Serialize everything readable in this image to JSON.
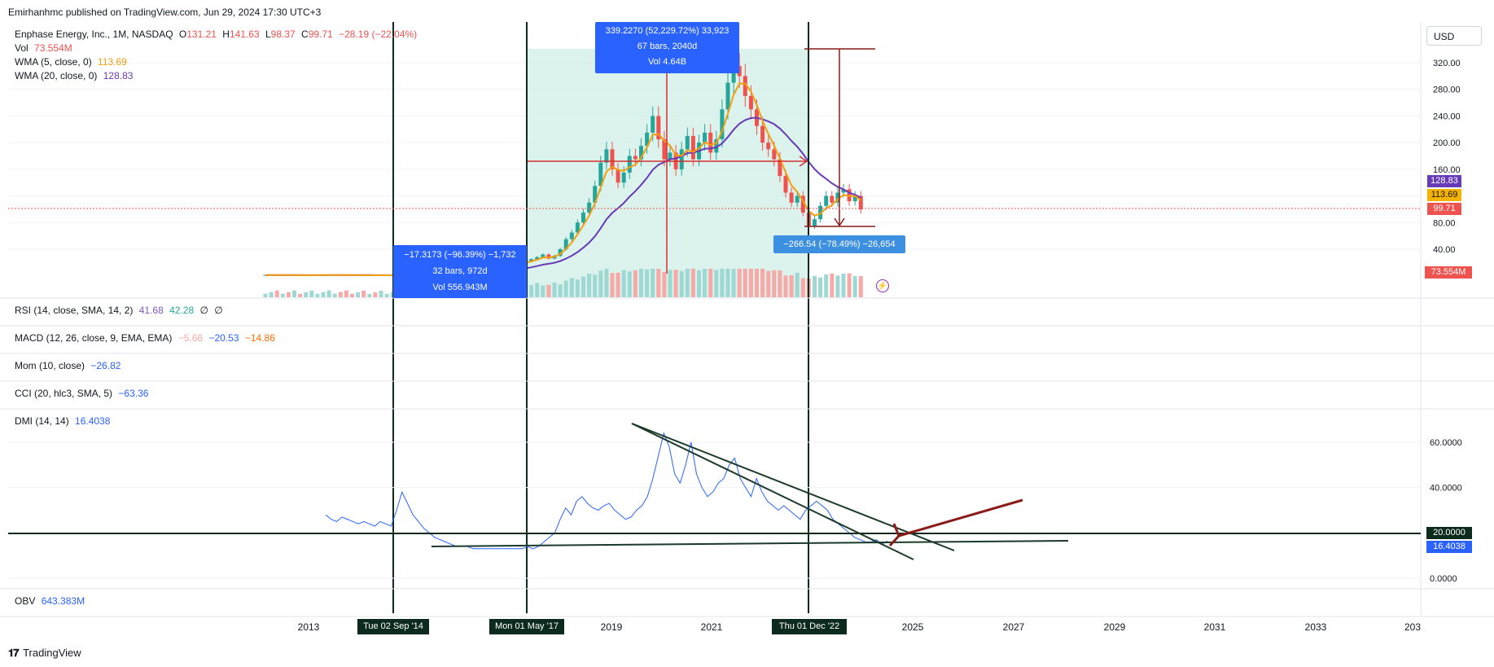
{
  "header": {
    "published": "Emirhanhmc published on TradingView.com, Jun 29, 2024 17:30 UTC+3"
  },
  "legend": {
    "symbol": "Enphase Energy, Inc., 1M, NASDAQ",
    "o_label": "O",
    "o": "131.21",
    "h_label": "H",
    "h": "141.63",
    "l_label": "L",
    "l": "98.37",
    "c_label": "C",
    "c": "99.71",
    "change": "−28.19 (−22.04%)",
    "vol_label": "Vol",
    "vol": "73.554M",
    "wma5_label": "WMA (5, close, 0)",
    "wma5": "113.69",
    "wma20_label": "WMA (20, close, 0)",
    "wma20": "128.83"
  },
  "currency": "USD",
  "price_badges": {
    "wma20": "128.83",
    "wma5": "113.69",
    "close": "99.71",
    "volume": "73.554M"
  },
  "measurements": {
    "top": {
      "line1": "339.2270 (52,229.72%) 33,923",
      "line2": "67 bars, 2040d",
      "line3": "Vol 4.64B"
    },
    "left": {
      "line1": "−17.3173 (−96.39%) −1,732",
      "line2": "32 bars, 972d",
      "line3": "Vol 556.943M"
    },
    "right": {
      "line1": "−266.54 (−78.49%) −26,654"
    }
  },
  "panes": {
    "rsi": {
      "label": "RSI (14, close, SMA, 14, 2)",
      "v1": "41.68",
      "v2": "42.28",
      "v3": "∅",
      "v4": "∅"
    },
    "macd": {
      "label": "MACD (12, 26, close, 9, EMA, EMA)",
      "v1": "−5.66",
      "v2": "−20.53",
      "v3": "−14.86"
    },
    "mom": {
      "label": "Mom (10, close)",
      "v1": "−26.82"
    },
    "cci": {
      "label": "CCI (20, hlc3, SMA, 5)",
      "v1": "−63.36"
    },
    "dmi": {
      "label": "DMI (14, 14)",
      "v1": "16.4038",
      "badge_level": "20.0000",
      "badge_value": "16.4038"
    },
    "obv": {
      "label": "OBV",
      "v1": "643.383M"
    }
  },
  "time_axis": {
    "years": [
      "2013",
      "2019",
      "2021",
      "2025",
      "2027",
      "2029",
      "2031",
      "2033",
      "203"
    ],
    "markers": [
      "Tue 02 Sep '14",
      "Mon 01 May '17",
      "Thu 01 Dec '22"
    ]
  },
  "footer": {
    "brand": "TradingView"
  },
  "colors": {
    "up": "#26a69a",
    "down": "#ef5350",
    "wma5": "#f59e0b",
    "wma20": "#673ab7",
    "measure_blue": "#2962ff",
    "measure_light": "#3d8fe0",
    "dmi_line": "#2962ff",
    "trend": "#1b3a2a",
    "arrow": "#8b1a1a"
  },
  "chart_data": [
    {
      "type": "candlestick",
      "title": "Enphase Energy, Inc., 1M, NASDAQ",
      "interval": "1M",
      "price_axis_ticks": [
        40,
        80,
        120,
        160,
        200,
        240,
        280,
        320
      ],
      "ylim": [
        0,
        350
      ],
      "last": {
        "open": 131.21,
        "high": 141.63,
        "low": 98.37,
        "close": 99.71,
        "volume": "73.554M"
      },
      "series": [
        {
          "name": "WMA (5, close, 0)",
          "last": 113.69
        },
        {
          "name": "WMA (20, close, 0)",
          "last": 128.83
        }
      ],
      "approx_monthly_close": [
        1.2,
        1.2,
        1.1,
        1.1,
        1.0,
        1.0,
        0.9,
        0.9,
        1.0,
        1.1,
        1.2,
        1.3,
        1.3,
        1.2,
        1.1,
        1.0,
        1.0,
        0.9,
        0.9,
        0.8,
        0.8,
        0.9,
        0.9,
        1.0,
        1.1,
        1.2,
        1.3,
        1.4,
        1.6,
        1.8,
        2.0,
        2.5,
        3.0,
        3.5,
        4.0,
        4.5,
        5.0,
        6.0,
        8.0,
        10.0,
        12.0,
        14.0,
        16.0,
        18.0,
        20.0,
        22.0,
        25.0,
        28.0,
        32.0,
        26.0,
        30.0,
        40.0,
        55.0,
        65.0,
        80.0,
        95.0,
        110.0,
        135.0,
        170.0,
        190.0,
        160.0,
        140.0,
        155.0,
        180.0,
        175.0,
        195.0,
        215.0,
        240.0,
        205.0,
        175.0,
        185.0,
        160.0,
        190.0,
        210.0,
        175.0,
        200.0,
        215.0,
        185.0,
        205.0,
        250.0,
        290.0,
        315.0,
        300.0,
        270.0,
        250.0,
        225.0,
        200.0,
        190.0,
        175.0,
        150.0,
        125.0,
        110.0,
        120.0,
        95.0,
        75.0,
        85.0,
        105.0,
        120.0,
        110.0,
        125.0,
        130.0,
        112.0,
        120.0,
        99.71
      ],
      "measures": [
        {
          "from": "Mon 01 May '17",
          "to": "Thu 01 Dec '22",
          "change": 339.227,
          "percent": 52229.72,
          "bars": 67,
          "days": 2040,
          "volume": "4.64B"
        },
        {
          "from": "Tue 02 Sep '14",
          "to": "Mon 01 May '17",
          "change": -17.3173,
          "percent": -96.39,
          "bars": 32,
          "days": 972,
          "volume": "556.943M"
        },
        {
          "from": "Thu 01 Dec '22",
          "change": -266.54,
          "percent": -78.49
        }
      ]
    },
    {
      "type": "line",
      "title": "DMI (14, 14)",
      "axis_ticks": [
        0,
        20,
        40,
        60
      ],
      "ylim": [
        -4,
        66
      ],
      "horizontal_level": 20,
      "last": 16.4038,
      "approx_values": [
        28,
        26,
        25,
        27,
        26,
        25,
        24,
        25,
        24,
        23,
        25,
        24,
        23,
        30,
        38,
        33,
        28,
        25,
        22,
        20,
        18,
        17,
        16,
        15,
        14,
        14,
        14,
        13,
        13,
        13,
        13,
        13,
        13,
        13,
        13,
        13,
        13,
        14,
        13,
        14,
        16,
        18,
        20,
        26,
        31,
        28,
        34,
        36,
        33,
        31,
        30,
        32,
        33,
        30,
        28,
        26,
        27,
        30,
        32,
        36,
        44,
        54,
        64,
        58,
        46,
        42,
        50,
        60,
        46,
        40,
        36,
        38,
        42,
        44,
        50,
        53,
        44,
        40,
        36,
        44,
        38,
        34,
        32,
        30,
        32,
        30,
        28,
        26,
        30,
        32,
        34,
        32,
        30,
        26,
        24,
        22,
        20,
        18,
        17,
        16,
        16,
        17,
        15,
        16.4038
      ]
    }
  ]
}
